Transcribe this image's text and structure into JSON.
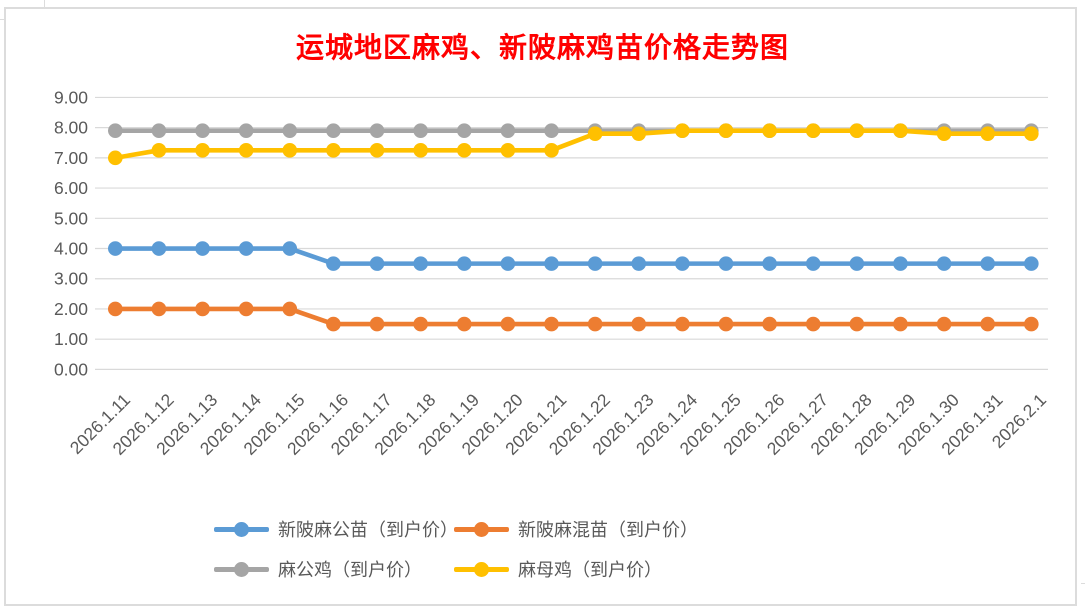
{
  "title": {
    "text": "运城地区麻鸡、新陂麻鸡苗价格走势图",
    "color": "#FF0000"
  },
  "chart_data": {
    "type": "line",
    "categories": [
      "2026.1.11",
      "2026.1.12",
      "2026.1.13",
      "2026.1.14",
      "2026.1.15",
      "2026.1.16",
      "2026.1.17",
      "2026.1.18",
      "2026.1.19",
      "2026.1.20",
      "2026.1.21",
      "2026.1.22",
      "2026.1.23",
      "2026.1.24",
      "2026.1.25",
      "2026.1.26",
      "2026.1.27",
      "2026.1.28",
      "2026.1.29",
      "2026.1.30",
      "2026.1.31",
      "2026.2.1"
    ],
    "series": [
      {
        "name": "新陂麻公苗（到户价）",
        "color": "#5B9BD5",
        "values": [
          4.0,
          4.0,
          4.0,
          4.0,
          4.0,
          3.5,
          3.5,
          3.5,
          3.5,
          3.5,
          3.5,
          3.5,
          3.5,
          3.5,
          3.5,
          3.5,
          3.5,
          3.5,
          3.5,
          3.5,
          3.5,
          3.5
        ]
      },
      {
        "name": "新陂麻混苗（到户价）",
        "color": "#ED7D31",
        "values": [
          2.0,
          2.0,
          2.0,
          2.0,
          2.0,
          1.5,
          1.5,
          1.5,
          1.5,
          1.5,
          1.5,
          1.5,
          1.5,
          1.5,
          1.5,
          1.5,
          1.5,
          1.5,
          1.5,
          1.5,
          1.5,
          1.5
        ]
      },
      {
        "name": "麻公鸡（到户价）",
        "color": "#A5A5A5",
        "values": [
          7.9,
          7.9,
          7.9,
          7.9,
          7.9,
          7.9,
          7.9,
          7.9,
          7.9,
          7.9,
          7.9,
          7.9,
          7.9,
          7.9,
          7.9,
          7.9,
          7.9,
          7.9,
          7.9,
          7.9,
          7.9,
          7.9
        ]
      },
      {
        "name": "麻母鸡（到户价）",
        "color": "#FFC000",
        "values": [
          7.0,
          7.25,
          7.25,
          7.25,
          7.25,
          7.25,
          7.25,
          7.25,
          7.25,
          7.25,
          7.25,
          7.8,
          7.8,
          7.9,
          7.9,
          7.9,
          7.9,
          7.9,
          7.9,
          7.8,
          7.8,
          7.8
        ]
      }
    ],
    "ylim": [
      0,
      9
    ],
    "ytick_labels": [
      "0.00",
      "1.00",
      "2.00",
      "3.00",
      "4.00",
      "5.00",
      "6.00",
      "7.00",
      "8.00",
      "9.00"
    ],
    "xlabel": "",
    "ylabel": "",
    "grid": true,
    "legend_position": "bottom",
    "marker": "circle",
    "style": {
      "grid_color": "#D9D9D9",
      "axis_text_color": "#595959",
      "background": "#FFFFFF",
      "border_color": "#DCDCDC"
    }
  }
}
